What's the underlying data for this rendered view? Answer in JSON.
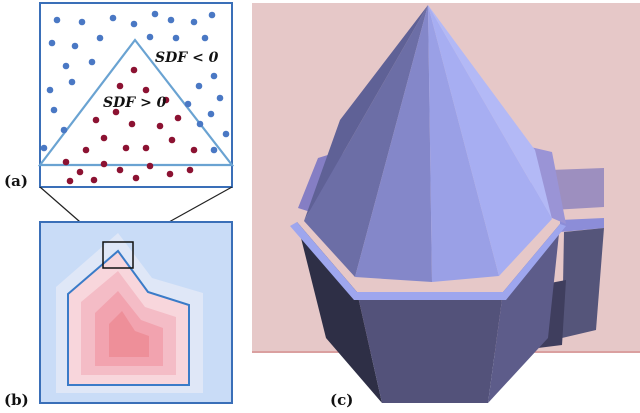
{
  "labels": {
    "a": "(a)",
    "b": "(b)",
    "c": "(c)"
  },
  "annotations": {
    "outside": "SDF < 0",
    "inside": "SDF > 0"
  },
  "colors": {
    "outside_dots": "#4a78c4",
    "inside_dots": "#8c1232",
    "panel_border": "#3a6fb8",
    "triangle_edge": "#6aa3d2",
    "sdf_far_outside": "#c9dcf7",
    "sdf_near_outside": "#dfe7f7",
    "sdf_inside_1": "#f8d6dc",
    "sdf_inside_2": "#f4bcc6",
    "sdf_inside_3": "#f2a3af",
    "sdf_inside_4": "#ee8f99",
    "render_background": "#e6c8c8",
    "mesh_light": "#9aa3ea",
    "mesh_dark": "#525177"
  }
}
